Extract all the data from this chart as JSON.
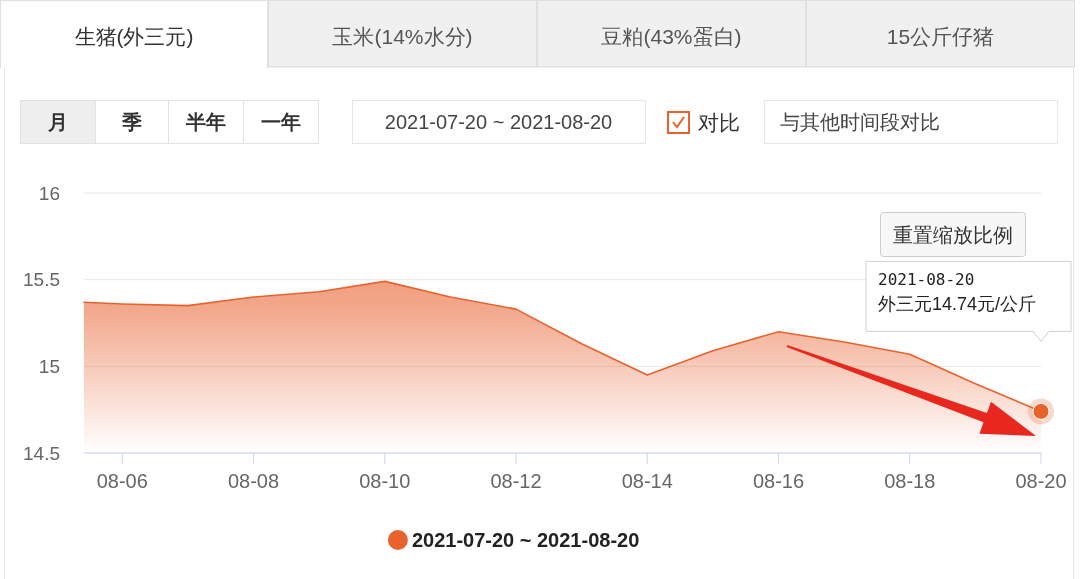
{
  "chart_data": {
    "type": "area",
    "x": [
      "2021-08-05T10:00",
      "2021-08-06",
      "2021-08-07",
      "2021-08-08",
      "2021-08-09",
      "2021-08-10",
      "2021-08-11",
      "2021-08-12",
      "2021-08-13",
      "2021-08-14",
      "2021-08-15",
      "2021-08-16",
      "2021-08-17",
      "2021-08-18",
      "2021-08-19",
      "2021-08-20"
    ],
    "series": [
      {
        "name": "2021-07-20 ~ 2021-08-20",
        "color": "#e8622e",
        "values": [
          15.37,
          15.36,
          15.35,
          15.4,
          15.43,
          15.49,
          15.4,
          15.33,
          15.13,
          14.95,
          15.09,
          15.2,
          15.14,
          15.07,
          14.9,
          14.74
        ]
      }
    ],
    "xlim": [
      "2021-08-05T10:00",
      "2021-08-20"
    ],
    "xticks": [
      {
        "value": "2021-08-06",
        "label": "08-06"
      },
      {
        "value": "2021-08-08",
        "label": "08-08"
      },
      {
        "value": "2021-08-10",
        "label": "08-10"
      },
      {
        "value": "2021-08-12",
        "label": "08-12"
      },
      {
        "value": "2021-08-14",
        "label": "08-14"
      },
      {
        "value": "2021-08-16",
        "label": "08-16"
      },
      {
        "value": "2021-08-18",
        "label": "08-18"
      },
      {
        "value": "2021-08-20",
        "label": "08-20"
      }
    ],
    "ylim": [
      14.5,
      16
    ],
    "yticks": [
      14.5,
      15,
      15.5,
      16
    ],
    "grid": "y",
    "legend": "bottom",
    "annotations": [
      "生猪(外三元)",
      "玉米(14%水分)",
      "豆粕(43%蛋白)",
      "15公斤仔猪",
      "月",
      "季",
      "半年",
      "一年",
      "2021-07-20 ~ 2021-08-20",
      "对比",
      "与其他时间段对比",
      "重置缩放比例",
      "2021-08-20",
      "外三元14.74元/公斤"
    ]
  }
}
